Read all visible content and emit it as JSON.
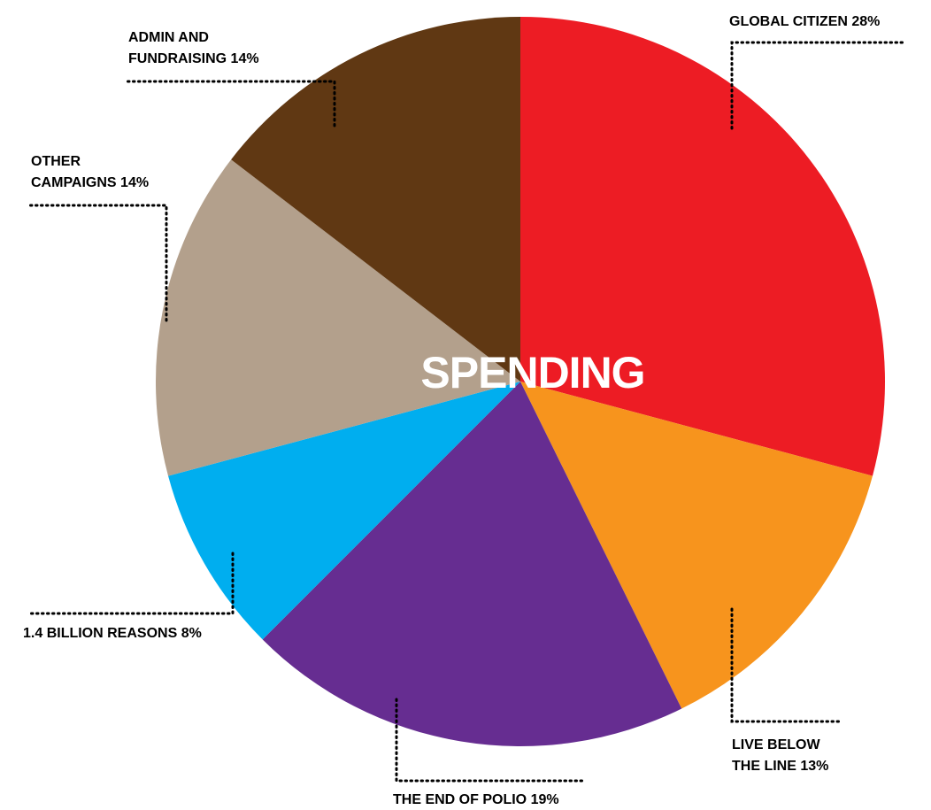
{
  "chart_data": {
    "type": "pie",
    "title": "SPENDING",
    "slices": [
      {
        "label_lines": [
          "GLOBAL CITIZEN 28%"
        ],
        "label": "GLOBAL CITIZEN",
        "value": 28,
        "color": "#ed1c24"
      },
      {
        "label_lines": [
          "LIVE BELOW",
          "THE LINE 13%"
        ],
        "label": "LIVE BELOW THE LINE",
        "value": 13,
        "color": "#f7941d"
      },
      {
        "label_lines": [
          "THE END OF POLIO 19%"
        ],
        "label": "THE END OF POLIO",
        "value": 19,
        "color": "#662d91"
      },
      {
        "label_lines": [
          "1.4 BILLION REASONS 8%"
        ],
        "label": "1.4 BILLION REASONS",
        "value": 8,
        "color": "#00aeef"
      },
      {
        "label_lines": [
          "OTHER",
          "CAMPAIGNS 14%"
        ],
        "label": "OTHER CAMPAIGNS",
        "value": 14,
        "color": "#b3a08c"
      },
      {
        "label_lines": [
          "ADMIN AND",
          "FUNDRAISING 14%"
        ],
        "label": "ADMIN AND FUNDRAISING",
        "value": 14,
        "color": "#603813"
      }
    ]
  }
}
